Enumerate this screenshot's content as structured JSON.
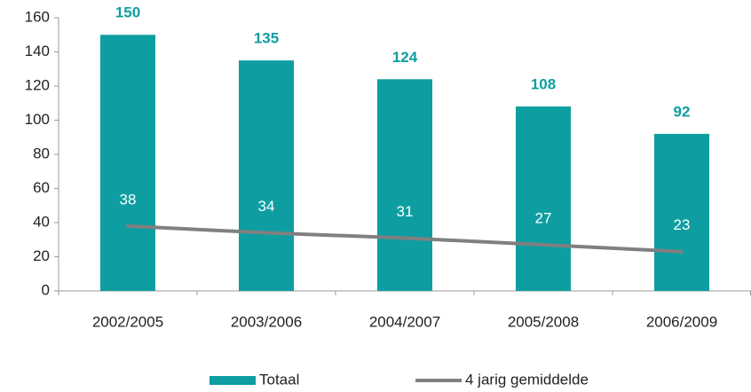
{
  "chart_data": {
    "type": "bar",
    "categories": [
      "2002/2005",
      "2003/2006",
      "2004/2007",
      "2005/2008",
      "2006/2009"
    ],
    "series": [
      {
        "name": "Totaal",
        "type": "bar",
        "color": "#0e9ea1",
        "values": [
          150,
          135,
          124,
          108,
          92
        ]
      },
      {
        "name": "4 jarig gemiddelde",
        "type": "line",
        "color": "#808080",
        "values": [
          38,
          34,
          31,
          27,
          23
        ]
      }
    ],
    "ylim": [
      0,
      160
    ],
    "yticks": [
      0,
      20,
      40,
      60,
      80,
      100,
      120,
      140,
      160
    ],
    "grid": false,
    "legend": "bottom"
  }
}
